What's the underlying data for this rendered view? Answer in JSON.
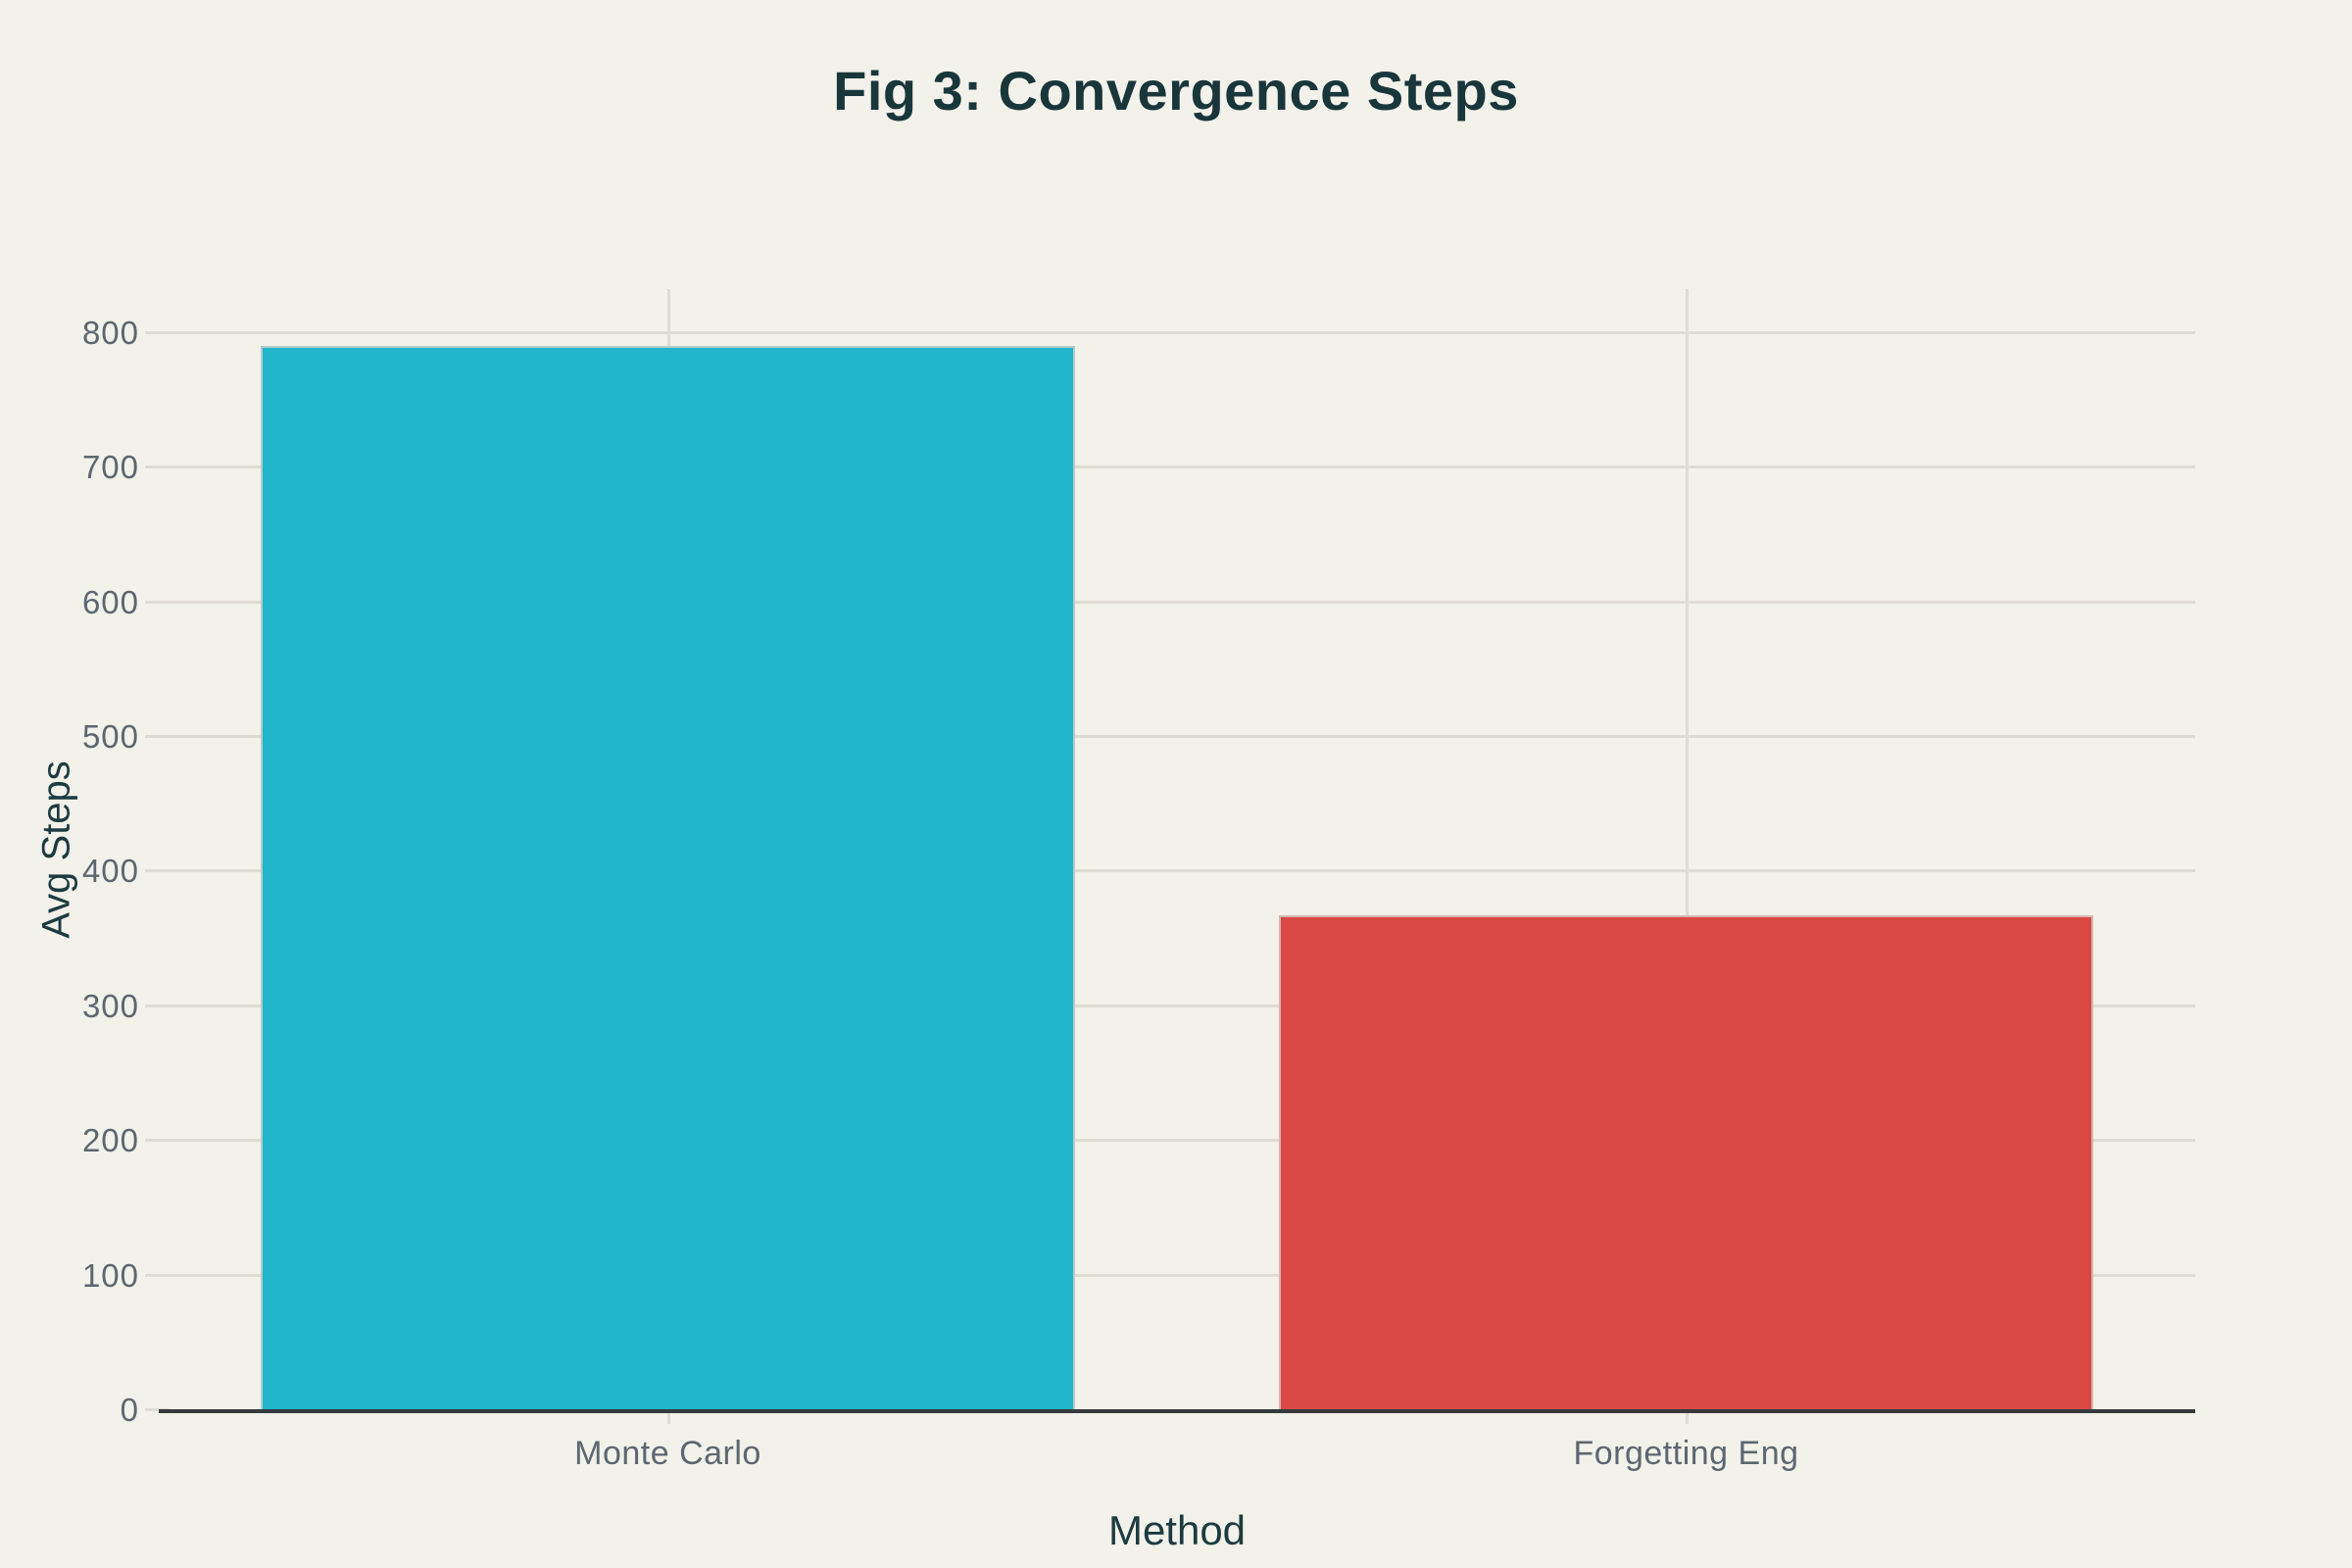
{
  "page": {
    "background": "#f2f1ea"
  },
  "chart_data": {
    "type": "bar",
    "title": "Fig 3: Convergence Steps",
    "xlabel": "Method",
    "ylabel": "Avg Steps",
    "categories": [
      "Monte Carlo",
      "Forgetting Eng"
    ],
    "values": [
      790,
      367
    ],
    "bar_colors": [
      "#21b6cc",
      "#d94845"
    ],
    "ylim": [
      0,
      832
    ],
    "yticks": [
      0,
      100,
      200,
      300,
      400,
      500,
      600,
      700,
      800
    ],
    "grid": "horizontal line at each y tick, vertical line at each category center, drawn behind bars",
    "legend": "none",
    "colors": {
      "background": "#f2f1ea",
      "title_text": "#19363b",
      "axis_title_text": "#1c3b40",
      "tick_label_text": "#5d6771",
      "gridline": "#dedcd3",
      "axis_line": "#343a3e"
    }
  }
}
